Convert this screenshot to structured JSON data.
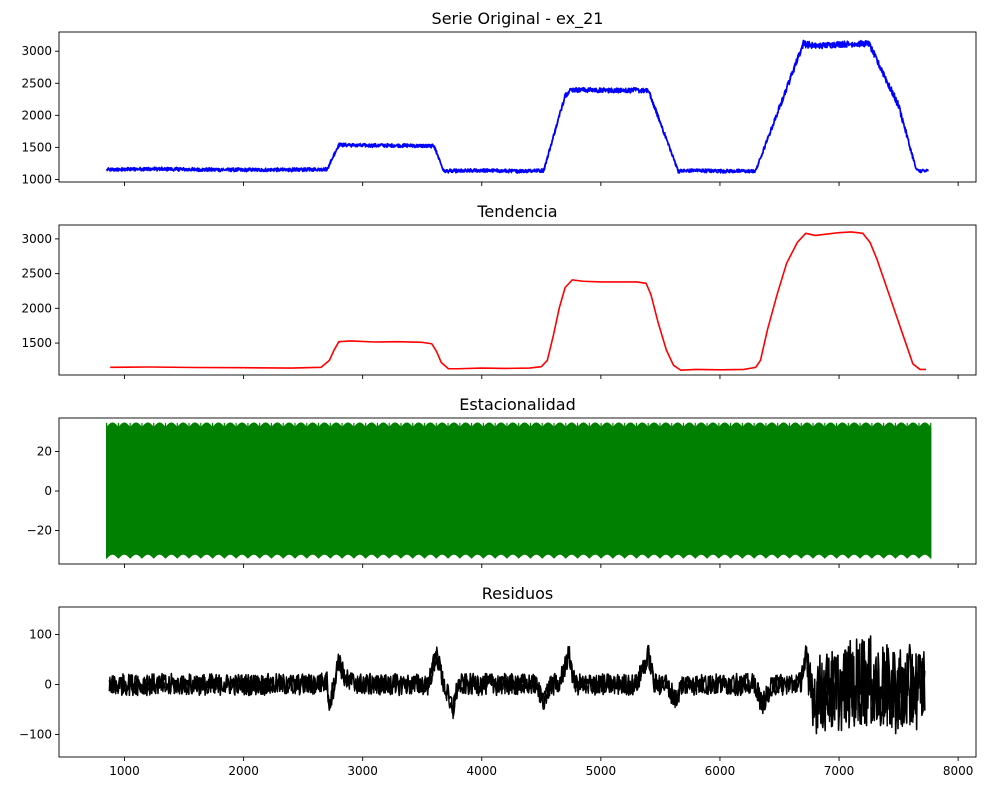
{
  "chart_data": [
    {
      "type": "line",
      "title": "Serie Original - ex_21",
      "color": "#0000ff",
      "band": "noisy",
      "xlim": [
        450,
        8150
      ],
      "ylim": [
        960,
        3300
      ],
      "x_ticks": [
        1000,
        2000,
        3000,
        4000,
        5000,
        6000,
        7000,
        8000
      ],
      "x_tick_labels_shown": false,
      "y_ticks": [
        1000,
        1500,
        2000,
        2500,
        3000
      ],
      "y_tick_labels": [
        "1000",
        "1500",
        "2000",
        "2500",
        "3000"
      ],
      "series": [
        {
          "x": [
            850,
            1200,
            1800,
            2400,
            2700,
            2800,
            3000,
            3300,
            3600,
            3680,
            4000,
            4300,
            4520,
            4700,
            4750,
            5000,
            5300,
            5400,
            5650,
            5800,
            6000,
            6300,
            6700,
            6800,
            7000,
            7250,
            7500,
            7650,
            7750
          ],
          "y": [
            1150,
            1165,
            1150,
            1150,
            1160,
            1540,
            1530,
            1530,
            1520,
            1130,
            1140,
            1130,
            1140,
            2310,
            2400,
            2390,
            2390,
            2380,
            1130,
            1140,
            1130,
            1130,
            3120,
            3080,
            3110,
            3120,
            2150,
            1140,
            1130
          ],
          "band_halfwidth": [
            30,
            30,
            30,
            30,
            30,
            30,
            30,
            30,
            30,
            30,
            30,
            30,
            30,
            40,
            40,
            40,
            40,
            40,
            30,
            30,
            30,
            30,
            60,
            50,
            50,
            50,
            60,
            30,
            30
          ]
        }
      ]
    },
    {
      "type": "line",
      "title": "Tendencia",
      "color": "#ff0000",
      "band": "none",
      "xlim": [
        450,
        8150
      ],
      "ylim": [
        1040,
        3200
      ],
      "x_ticks": [
        1000,
        2000,
        3000,
        4000,
        5000,
        6000,
        7000,
        8000
      ],
      "x_tick_labels_shown": false,
      "y_ticks": [
        1500,
        2000,
        2500,
        3000
      ],
      "y_tick_labels": [
        "1500",
        "2000",
        "2500",
        "3000"
      ],
      "series": [
        {
          "x": [
            880,
            1200,
            1600,
            2000,
            2400,
            2650,
            2720,
            2760,
            2800,
            2900,
            3100,
            3300,
            3500,
            3580,
            3620,
            3660,
            3720,
            3800,
            4000,
            4200,
            4400,
            4500,
            4550,
            4600,
            4650,
            4700,
            4760,
            4850,
            5000,
            5300,
            5380,
            5420,
            5480,
            5550,
            5610,
            5670,
            5800,
            6000,
            6200,
            6300,
            6340,
            6400,
            6480,
            6560,
            6650,
            6720,
            6800,
            6900,
            7000,
            7100,
            7200,
            7260,
            7320,
            7400,
            7480,
            7560,
            7620,
            7680,
            7730
          ],
          "y": [
            1150,
            1155,
            1148,
            1145,
            1140,
            1150,
            1250,
            1400,
            1520,
            1530,
            1515,
            1520,
            1510,
            1490,
            1380,
            1220,
            1130,
            1130,
            1140,
            1135,
            1140,
            1160,
            1250,
            1600,
            2000,
            2300,
            2410,
            2390,
            2380,
            2380,
            2360,
            2200,
            1800,
            1400,
            1180,
            1110,
            1120,
            1115,
            1120,
            1150,
            1250,
            1700,
            2200,
            2650,
            2950,
            3080,
            3050,
            3070,
            3090,
            3100,
            3080,
            2950,
            2700,
            2300,
            1900,
            1500,
            1200,
            1120,
            1120
          ]
        }
      ]
    },
    {
      "type": "area",
      "title": "Estacionalidad",
      "color": "#008000",
      "band": "fill",
      "xlim": [
        450,
        8150
      ],
      "ylim": [
        -37,
        37
      ],
      "x_ticks": [
        1000,
        2000,
        3000,
        4000,
        5000,
        6000,
        7000,
        8000
      ],
      "x_tick_labels_shown": false,
      "y_ticks": [
        -20,
        0,
        20
      ],
      "y_tick_labels": [
        "−20",
        "0",
        "20"
      ],
      "series": [
        {
          "x": [
            850,
            7770
          ],
          "upper": 32,
          "lower": -32,
          "peak_upper": 34.5,
          "trough_lower": -34,
          "cycles": 70
        }
      ]
    },
    {
      "type": "line",
      "title": "Residuos",
      "color": "#000000",
      "band": "noisy",
      "xlim": [
        450,
        8150
      ],
      "ylim": [
        -145,
        155
      ],
      "x_ticks": [
        1000,
        2000,
        3000,
        4000,
        5000,
        6000,
        7000,
        8000
      ],
      "x_tick_labels": [
        "1000",
        "2000",
        "3000",
        "4000",
        "5000",
        "6000",
        "7000",
        "8000"
      ],
      "y_ticks": [
        -100,
        0,
        100
      ],
      "y_tick_labels": [
        "−100",
        "0",
        "100"
      ],
      "series": [
        {
          "x": [
            870,
            1500,
            2000,
            2600,
            2700,
            2720,
            2760,
            2800,
            2850,
            3000,
            3550,
            3620,
            3680,
            3760,
            3800,
            4000,
            4450,
            4520,
            4580,
            4650,
            4730,
            4780,
            4850,
            5000,
            5300,
            5400,
            5450,
            5550,
            5630,
            5680,
            5800,
            6000,
            6200,
            6300,
            6350,
            6450,
            6600,
            6680,
            6720,
            6750,
            6800,
            7000,
            7200,
            7400,
            7600,
            7720
          ],
          "y": [
            0,
            0,
            0,
            0,
            5,
            -40,
            0,
            50,
            10,
            0,
            0,
            60,
            0,
            -50,
            0,
            0,
            0,
            -30,
            0,
            0,
            60,
            0,
            0,
            0,
            0,
            60,
            0,
            0,
            -30,
            0,
            0,
            0,
            0,
            0,
            -40,
            0,
            0,
            5,
            60,
            0,
            -20,
            -10,
            10,
            -10,
            -10,
            0
          ],
          "band_halfwidth": [
            22,
            22,
            22,
            22,
            22,
            22,
            22,
            22,
            22,
            22,
            22,
            22,
            22,
            22,
            22,
            22,
            22,
            22,
            22,
            22,
            22,
            22,
            22,
            22,
            22,
            22,
            22,
            22,
            22,
            22,
            22,
            22,
            22,
            22,
            22,
            22,
            22,
            22,
            25,
            55,
            80,
            85,
            95,
            90,
            90,
            80
          ]
        }
      ]
    }
  ]
}
